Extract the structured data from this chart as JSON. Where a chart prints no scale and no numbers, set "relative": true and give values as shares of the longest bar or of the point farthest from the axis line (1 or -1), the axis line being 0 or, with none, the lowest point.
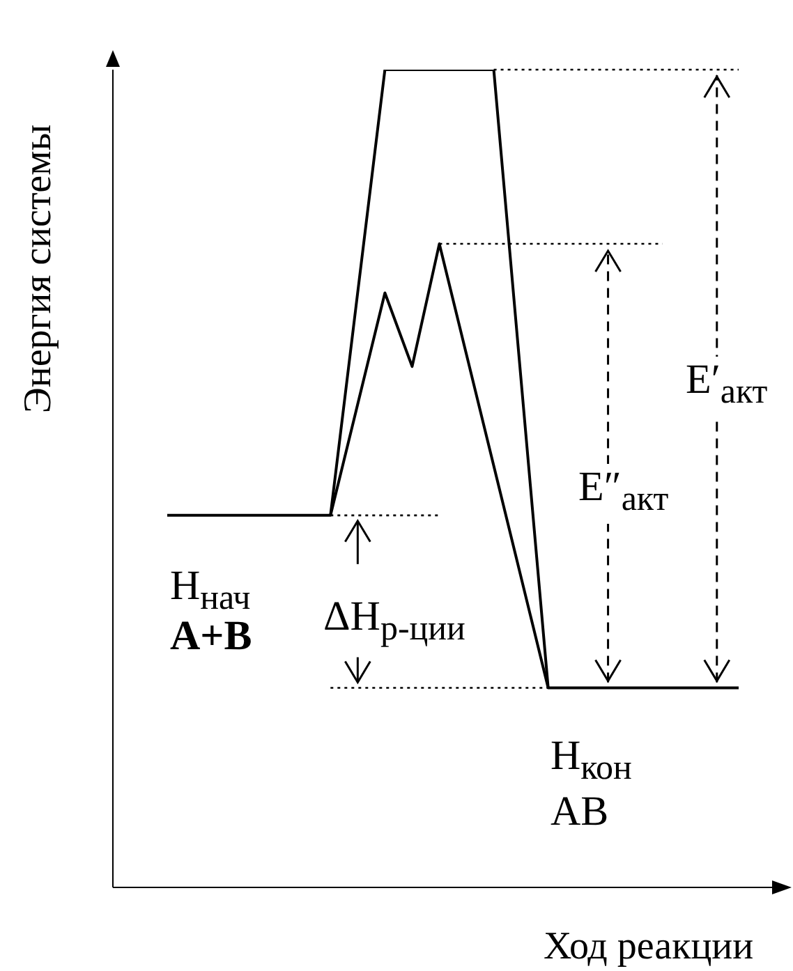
{
  "chart_data": {
    "type": "line",
    "relative": true,
    "xlabel": "Ход реакции",
    "ylabel": "Энергия системы",
    "categories": [
      null,
      null,
      null,
      null,
      null,
      null,
      null,
      null,
      null,
      null,
      null,
      null,
      null,
      null,
      null,
      null,
      null,
      null,
      null,
      null,
      null,
      null
    ],
    "series": [
      {
        "color": "#000000",
        "values": [
          0.455,
          null,
          null,
          null,
          null,
          null,
          0.455,
          null,
          1,
          null,
          null,
          null,
          1,
          null,
          0.244,
          null,
          null,
          null,
          null,
          null,
          null,
          0.244
        ]
      },
      {
        "color": "#000000",
        "values": [
          null,
          null,
          null,
          null,
          null,
          null,
          0.455,
          null,
          0.727,
          0.637,
          0.787,
          null,
          null,
          null,
          0.244,
          null,
          null,
          null,
          null,
          null,
          null,
          null
        ]
      }
    ],
    "ref_lines": [
      {
        "axis": "y",
        "value": 1,
        "color": "#000000",
        "line_style": "dotted"
      },
      {
        "axis": "y",
        "value": 0.787,
        "color": "#000000",
        "line_style": "dotted"
      },
      {
        "axis": "y",
        "value": 0.455,
        "color": "#000000",
        "line_style": "dotted"
      },
      {
        "axis": "y",
        "value": 0.244,
        "color": "#000000",
        "line_style": "dotted"
      }
    ],
    "annotations": [
      "E′$_{акт}$",
      "E″$_{акт}$",
      "ΔH$_{р-ции}$",
      "H$_{нач}$",
      "A+B",
      "H$_{кон}$",
      "AB"
    ]
  }
}
